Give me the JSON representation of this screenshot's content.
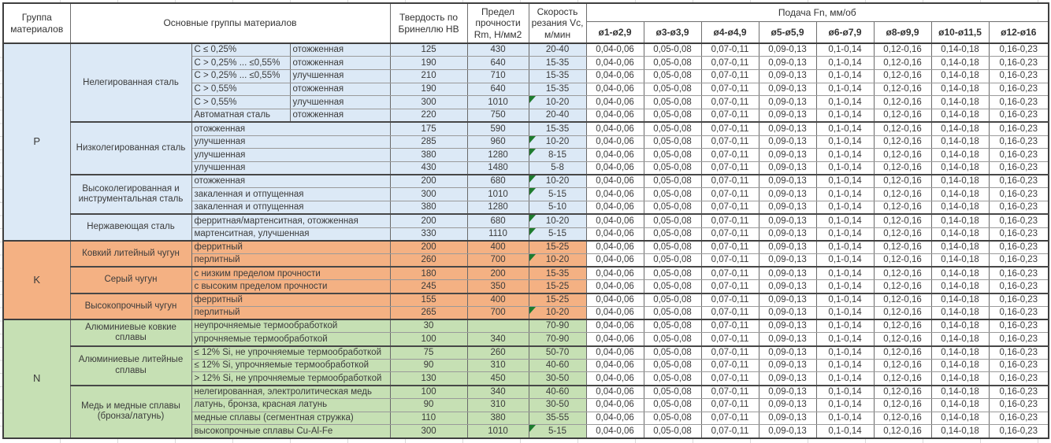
{
  "table": {
    "headers": {
      "group": "Группа материалов",
      "materials": "Основные группы материалов",
      "hardness": "Твердость по Бринеллю HB",
      "strength": "Предел прочности Rm, Н/мм2",
      "speed": "Скорость резания Vc, м/мин",
      "feed": "Подача Fn, мм/об"
    },
    "diameters": [
      "ø1-ø2,9",
      "ø3-ø3,9",
      "ø4-ø4,9",
      "ø5-ø5,9",
      "ø6-ø7,9",
      "ø8-ø9,9",
      "ø10-ø11,5",
      "ø12-ø16"
    ],
    "feed_values": [
      "0,04-0,06",
      "0,05-0,08",
      "0,07-0,11",
      "0,09-0,13",
      "0,1-0,14",
      "0,12-0,16",
      "0,14-0,18",
      "0,16-0,23"
    ],
    "note_triangle_color": "#1e7b2e",
    "groups": [
      {
        "code": "P",
        "color": "#dce9f6",
        "subgroups": [
          {
            "name": "Нелегированная сталь",
            "rows": [
              {
                "desc": "C ≤ 0,25%",
                "state": "отожженная",
                "hb": "125",
                "rm": "430",
                "vc": "20-40",
                "note": false
              },
              {
                "desc": "C > 0,25% ... ≤0,55%",
                "state": "отожженная",
                "hb": "190",
                "rm": "640",
                "vc": "15-35",
                "note": false
              },
              {
                "desc": "C > 0,25% ... ≤0,55%",
                "state": "улучшенная",
                "hb": "210",
                "rm": "710",
                "vc": "15-35",
                "note": false
              },
              {
                "desc": "C > 0,55%",
                "state": "отожженная",
                "hb": "190",
                "rm": "640",
                "vc": "15-35",
                "note": false
              },
              {
                "desc": "C > 0,55%",
                "state": "улучшенная",
                "hb": "300",
                "rm": "1010",
                "vc": "10-20",
                "note": true
              },
              {
                "desc": "Автоматная сталь",
                "state": "отожженная",
                "hb": "220",
                "rm": "750",
                "vc": "20-40",
                "note": false
              }
            ]
          },
          {
            "name": "Низколегированная сталь",
            "rows": [
              {
                "desc": "отожженная",
                "hb": "175",
                "rm": "590",
                "vc": "15-35",
                "note": false
              },
              {
                "desc": "улучшенная",
                "hb": "285",
                "rm": "960",
                "vc": "10-20",
                "note": true
              },
              {
                "desc": "улучшенная",
                "hb": "380",
                "rm": "1280",
                "vc": "8-15",
                "note": true
              },
              {
                "desc": "улучшенная",
                "hb": "430",
                "rm": "1480",
                "vc": "5-8",
                "note": false
              }
            ]
          },
          {
            "name": "Высоколегированная и инструментальная сталь",
            "rows": [
              {
                "desc": "отожженная",
                "hb": "200",
                "rm": "680",
                "vc": "10-20",
                "note": true
              },
              {
                "desc": "закаленная и отпущенная",
                "hb": "300",
                "rm": "1010",
                "vc": "5-15",
                "note": true
              },
              {
                "desc": "закаленная и отпущенная",
                "hb": "380",
                "rm": "1280",
                "vc": "5-10",
                "note": false
              }
            ]
          },
          {
            "name": "Нержавеющая сталь",
            "rows": [
              {
                "desc": "ферритная/мартенситная, отожженная",
                "hb": "200",
                "rm": "680",
                "vc": "10-20",
                "note": true
              },
              {
                "desc": "мартенситная, улучшенная",
                "hb": "330",
                "rm": "1110",
                "vc": "5-15",
                "note": true
              }
            ]
          }
        ]
      },
      {
        "code": "K",
        "color": "#f4b183",
        "subgroups": [
          {
            "name": "Ковкий литейный чугун",
            "rows": [
              {
                "desc": "ферритный",
                "hb": "200",
                "rm": "400",
                "vc": "15-25",
                "note": false
              },
              {
                "desc": "перлитный",
                "hb": "260",
                "rm": "700",
                "vc": "10-20",
                "note": true
              }
            ]
          },
          {
            "name": "Серый чугун",
            "rows": [
              {
                "desc": "с низким пределом прочности",
                "hb": "180",
                "rm": "200",
                "vc": "15-35",
                "note": false
              },
              {
                "desc": "с высоким пределом прочности",
                "hb": "245",
                "rm": "350",
                "vc": "15-25",
                "note": false
              }
            ]
          },
          {
            "name": "Высокопрочный чугун",
            "rows": [
              {
                "desc": "ферритный",
                "hb": "155",
                "rm": "400",
                "vc": "15-25",
                "note": false
              },
              {
                "desc": "перлитный",
                "hb": "265",
                "rm": "700",
                "vc": "10-20",
                "note": true
              }
            ]
          }
        ]
      },
      {
        "code": "N",
        "color": "#c6e0b4",
        "subgroups": [
          {
            "name": "Алюминиевые ковкие сплавы",
            "rows": [
              {
                "desc": "неупрочняемые термообработкой",
                "hb": "30",
                "rm": "",
                "vc": "70-90",
                "note": false
              },
              {
                "desc": "упрочняемые термообработкой",
                "hb": "100",
                "rm": "340",
                "vc": "70-90",
                "note": false
              }
            ]
          },
          {
            "name": "Алюминиевые литейные сплавы",
            "rows": [
              {
                "desc": "≤ 12% Si, не упрочняемые термообработкой",
                "hb": "75",
                "rm": "260",
                "vc": "50-70",
                "note": false
              },
              {
                "desc": "≤ 12% Si, упрочняемые термообработкой",
                "hb": "90",
                "rm": "310",
                "vc": "40-60",
                "note": false
              },
              {
                "desc": "> 12% Si, не упрочняемые термообработкой",
                "hb": "130",
                "rm": "450",
                "vc": "30-50",
                "note": false
              }
            ]
          },
          {
            "name": "Медь и медные сплавы (бронза/латунь)",
            "rows": [
              {
                "desc": "нелегированная, электролитическая медь",
                "hb": "100",
                "rm": "340",
                "vc": "40-60",
                "note": false
              },
              {
                "desc": "латунь, бронза, красная латунь",
                "hb": "90",
                "rm": "310",
                "vc": "30-50",
                "note": false
              },
              {
                "desc": "медные сплавы (сегментная стружка)",
                "hb": "110",
                "rm": "380",
                "vc": "35-55",
                "note": false
              },
              {
                "desc": "высокопрочные сплавы Cu-Al-Fe",
                "hb": "300",
                "rm": "1010",
                "vc": "5-15",
                "note": true
              }
            ]
          }
        ]
      }
    ]
  }
}
